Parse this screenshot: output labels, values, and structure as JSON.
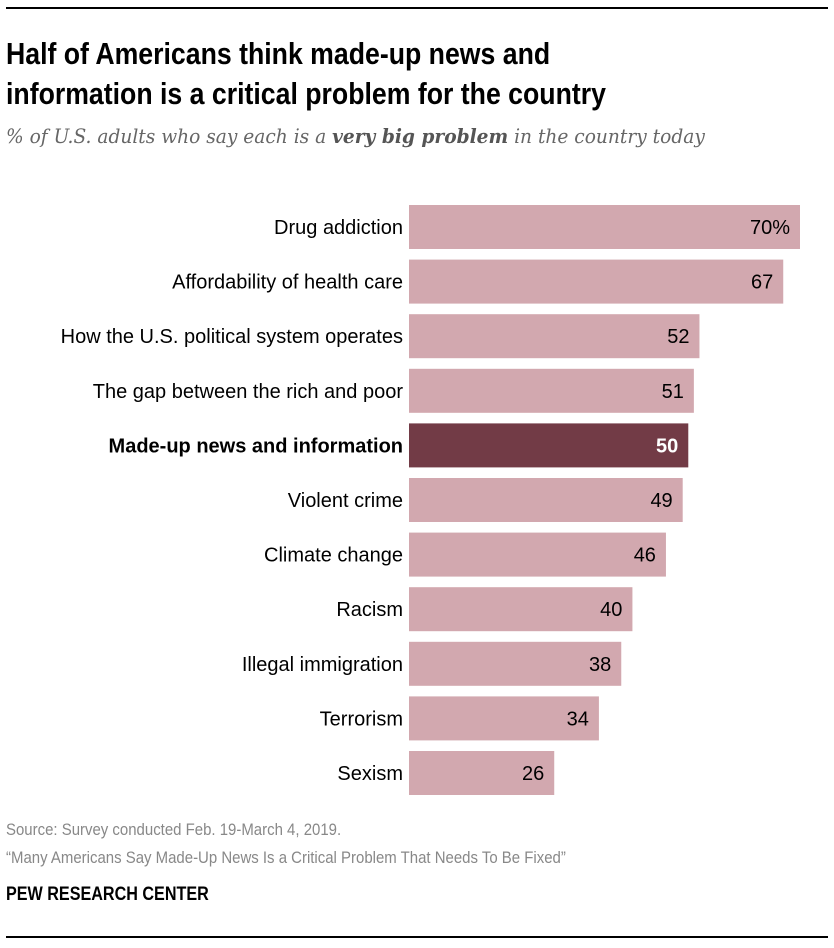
{
  "title_line1": "Half of Americans think made-up news and",
  "title_line2": "information is a critical problem for the country",
  "subtitle": {
    "pre": "% of U.S. adults who say each is a ",
    "bold": "very big problem",
    "post": " in the country today"
  },
  "chart_data": {
    "type": "bar",
    "orientation": "horizontal",
    "categories": [
      "Drug addiction",
      "Affordability of health care",
      "How the U.S. political system operates",
      "The gap between the rich and poor",
      "Made-up news and information",
      "Violent crime",
      "Climate change",
      "Racism",
      "Illegal immigration",
      "Terrorism",
      "Sexism"
    ],
    "values": [
      70,
      67,
      52,
      51,
      50,
      49,
      46,
      40,
      38,
      34,
      26
    ],
    "value_labels": [
      "70%",
      "67",
      "52",
      "51",
      "50",
      "49",
      "46",
      "40",
      "38",
      "34",
      "26"
    ],
    "highlight_index": 4,
    "xlim": [
      0,
      70
    ],
    "grid": false,
    "colors": {
      "bar": "#d2a8af",
      "highlight": "#723b46",
      "label": "#000000",
      "highlight_label": "#ffffff"
    }
  },
  "footer": {
    "source": "Source: Survey conducted Feb. 19-March 4, 2019.",
    "report": "“Many Americans Say Made-Up News Is a Critical Problem That Needs To Be Fixed”",
    "brand": "PEW RESEARCH CENTER"
  }
}
